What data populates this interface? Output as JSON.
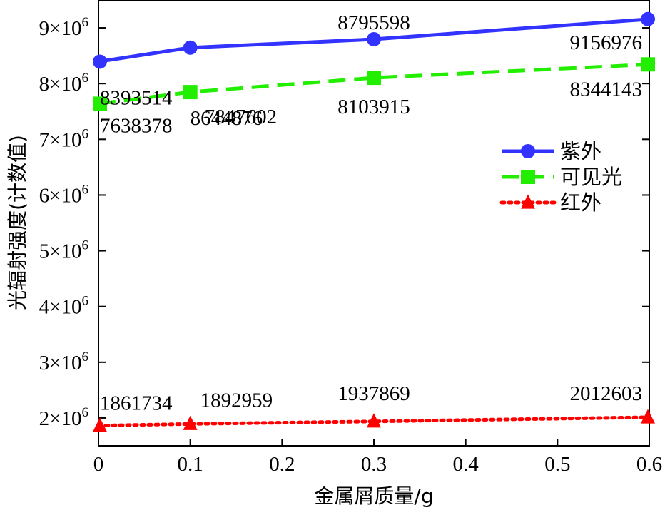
{
  "chart_data": {
    "type": "line",
    "title": "",
    "xlabel": "金属屑质量/g",
    "ylabel": "光辐射强度(计数值)",
    "xlim": [
      0,
      0.6
    ],
    "ylim": [
      1500000,
      9500000
    ],
    "x": [
      0,
      0.1,
      0.3,
      0.6
    ],
    "x_ticks": [
      0,
      0.1,
      0.2,
      0.3,
      0.4,
      0.5,
      0.6
    ],
    "x_tick_labels": [
      "0",
      "0.1",
      "0.2",
      "0.3",
      "0.4",
      "0.5",
      "0.6"
    ],
    "y_ticks": [
      2000000,
      3000000,
      4000000,
      5000000,
      6000000,
      7000000,
      8000000,
      9000000
    ],
    "y_tick_mantissa": [
      "2×10",
      "3×10",
      "4×10",
      "5×10",
      "6×10",
      "7×10",
      "8×10",
      "9×10"
    ],
    "y_tick_exponent": "6",
    "grid": false,
    "legend_position": "right",
    "series": [
      {
        "name": "紫外",
        "color": "#3333ff",
        "marker": "circle",
        "line_style": "solid",
        "values": [
          8393514,
          8644876,
          8795598,
          9156976
        ],
        "labels": [
          "8393514",
          "8644876",
          "8795598",
          "9156976"
        ]
      },
      {
        "name": "可见光",
        "color": "#22ee00",
        "marker": "square",
        "line_style": "dashed",
        "values": [
          7638378,
          7847602,
          8103915,
          8344143
        ],
        "labels": [
          "7638378",
          "7847602",
          "8103915",
          "8344143"
        ]
      },
      {
        "name": "红外",
        "color": "#ff0000",
        "marker": "triangle",
        "line_style": "dotted",
        "values": [
          1861734,
          1892959,
          1937869,
          2012603
        ],
        "labels": [
          "1861734",
          "1892959",
          "1937869",
          "2012603"
        ]
      }
    ]
  }
}
